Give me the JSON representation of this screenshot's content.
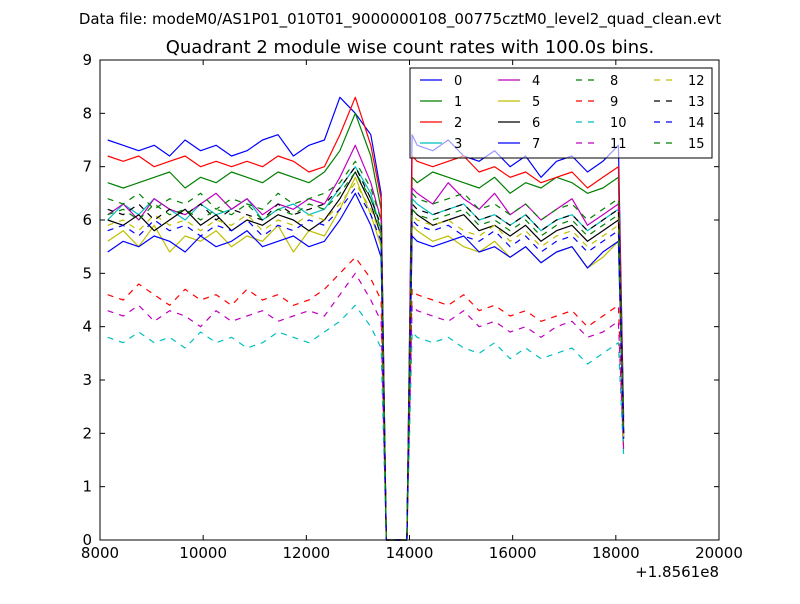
{
  "figure": {
    "suptitle": "Data file: modeM0/AS1P01_010T01_9000000108_00775cztM0_level2_quad_clean.evt",
    "title": "Quadrant 2 module wise count rates with 100.0s bins.",
    "x_offset_label": "+1.8561e8"
  },
  "chart_data": {
    "type": "line",
    "title": "Quadrant 2 module wise count rates with 100.0s bins.",
    "xlabel": "",
    "ylabel": "",
    "xlim": [
      8000,
      20000
    ],
    "ylim": [
      0,
      9
    ],
    "x_offset": 185610000,
    "x_ticks": [
      8000,
      10000,
      12000,
      14000,
      16000,
      18000,
      20000
    ],
    "y_ticks": [
      0,
      1,
      2,
      3,
      4,
      5,
      6,
      7,
      8,
      9
    ],
    "grid": false,
    "legend_position": "top-right",
    "legend_columns": 4,
    "x": [
      8150,
      8450,
      8750,
      9050,
      9350,
      9650,
      9950,
      10250,
      10550,
      10850,
      11150,
      11450,
      11750,
      12050,
      12350,
      12650,
      12950,
      13250,
      13450,
      13550,
      13650,
      13950,
      14050,
      14150,
      14450,
      14750,
      15050,
      15350,
      15650,
      15950,
      16250,
      16550,
      16850,
      17150,
      17450,
      17750,
      18050,
      18150
    ],
    "series": [
      {
        "name": "0",
        "color": "#0000ff",
        "dash": "solid",
        "values": [
          7.5,
          7.4,
          7.3,
          7.4,
          7.2,
          7.5,
          7.3,
          7.4,
          7.2,
          7.3,
          7.5,
          7.6,
          7.2,
          7.4,
          7.5,
          8.3,
          8.0,
          7.6,
          6.5,
          0.0,
          0.0,
          0.0,
          7.6,
          7.4,
          7.3,
          7.5,
          7.2,
          7.1,
          7.3,
          7.0,
          7.2,
          6.8,
          7.1,
          7.2,
          6.9,
          7.1,
          7.4,
          2.3
        ]
      },
      {
        "name": "1",
        "color": "#008000",
        "dash": "solid",
        "values": [
          6.7,
          6.6,
          6.7,
          6.8,
          6.9,
          6.6,
          6.8,
          6.7,
          6.9,
          6.8,
          6.7,
          6.9,
          6.8,
          6.7,
          6.9,
          7.3,
          8.0,
          7.2,
          6.2,
          0.0,
          0.0,
          0.0,
          6.8,
          6.7,
          6.9,
          6.8,
          6.7,
          6.6,
          6.8,
          6.5,
          6.7,
          6.6,
          6.8,
          6.7,
          6.5,
          6.6,
          6.8,
          2.1
        ]
      },
      {
        "name": "2",
        "color": "#ff0000",
        "dash": "solid",
        "values": [
          7.2,
          7.1,
          7.2,
          7.0,
          7.1,
          7.2,
          7.0,
          7.1,
          7.0,
          7.1,
          7.0,
          7.2,
          7.1,
          6.9,
          7.0,
          7.6,
          8.3,
          7.4,
          6.4,
          0.0,
          0.0,
          0.0,
          7.2,
          7.1,
          7.0,
          7.1,
          7.2,
          6.9,
          7.0,
          6.8,
          6.9,
          6.7,
          6.8,
          6.9,
          6.6,
          6.8,
          7.0,
          2.2
        ]
      },
      {
        "name": "3",
        "color": "#00bfbf",
        "dash": "solid",
        "values": [
          6.0,
          6.3,
          6.1,
          6.4,
          6.2,
          6.0,
          6.3,
          6.1,
          6.2,
          6.4,
          6.0,
          6.2,
          6.3,
          6.1,
          6.2,
          6.6,
          7.0,
          6.5,
          5.8,
          0.0,
          0.0,
          0.0,
          6.4,
          6.3,
          6.1,
          6.2,
          6.3,
          6.0,
          6.1,
          5.9,
          6.1,
          5.8,
          6.0,
          6.1,
          5.8,
          6.0,
          6.2,
          2.0
        ]
      },
      {
        "name": "4",
        "color": "#bf00bf",
        "dash": "solid",
        "values": [
          6.1,
          6.3,
          6.0,
          6.4,
          6.2,
          6.1,
          6.3,
          6.5,
          6.2,
          6.4,
          6.1,
          6.3,
          6.2,
          6.4,
          6.3,
          6.8,
          7.4,
          6.7,
          6.0,
          0.0,
          0.0,
          0.0,
          6.6,
          6.5,
          6.3,
          6.7,
          6.4,
          6.2,
          6.5,
          6.1,
          6.3,
          6.0,
          6.2,
          6.4,
          5.9,
          6.1,
          6.3,
          2.0
        ]
      },
      {
        "name": "5",
        "color": "#bfbf00",
        "dash": "solid",
        "values": [
          5.6,
          5.8,
          5.5,
          5.9,
          5.4,
          5.7,
          5.6,
          5.8,
          5.5,
          5.7,
          5.6,
          5.9,
          5.4,
          5.8,
          5.7,
          6.2,
          6.8,
          6.1,
          5.5,
          0.0,
          0.0,
          0.0,
          5.9,
          5.8,
          5.6,
          5.7,
          5.5,
          5.4,
          5.6,
          5.3,
          5.5,
          5.2,
          5.4,
          5.5,
          5.1,
          5.3,
          5.6,
          1.9
        ]
      },
      {
        "name": "6",
        "color": "#000000",
        "dash": "solid",
        "values": [
          6.0,
          5.9,
          6.1,
          5.8,
          6.0,
          6.2,
          5.9,
          6.1,
          5.8,
          6.0,
          5.9,
          6.1,
          6.0,
          5.8,
          6.0,
          6.4,
          6.9,
          6.3,
          5.7,
          0.0,
          0.0,
          0.0,
          6.2,
          6.1,
          5.9,
          6.0,
          6.1,
          5.8,
          5.9,
          5.7,
          5.9,
          5.6,
          5.8,
          5.9,
          5.6,
          5.8,
          6.0,
          2.0
        ]
      },
      {
        "name": "7",
        "color": "#0000ff",
        "dash": "solid",
        "values": [
          5.4,
          5.6,
          5.5,
          5.7,
          5.6,
          5.4,
          5.7,
          5.5,
          5.6,
          5.8,
          5.5,
          5.6,
          5.7,
          5.5,
          5.6,
          6.0,
          6.5,
          5.9,
          5.3,
          0.0,
          0.0,
          0.0,
          5.7,
          5.6,
          5.5,
          5.6,
          5.7,
          5.4,
          5.5,
          5.3,
          5.5,
          5.2,
          5.4,
          5.5,
          5.1,
          5.4,
          5.6,
          1.9
        ]
      },
      {
        "name": "8",
        "color": "#008000",
        "dash": "dashed",
        "values": [
          6.4,
          6.3,
          6.5,
          6.2,
          6.4,
          6.3,
          6.5,
          6.2,
          6.4,
          6.3,
          6.2,
          6.5,
          6.3,
          6.4,
          6.5,
          6.7,
          7.1,
          6.6,
          6.0,
          0.0,
          0.0,
          0.0,
          6.5,
          6.4,
          6.3,
          6.4,
          6.5,
          6.2,
          6.3,
          6.1,
          6.3,
          6.0,
          6.2,
          6.3,
          6.0,
          6.2,
          6.4,
          2.0
        ]
      },
      {
        "name": "9",
        "color": "#ff0000",
        "dash": "dashed",
        "values": [
          4.6,
          4.5,
          4.8,
          4.6,
          4.4,
          4.7,
          4.5,
          4.6,
          4.4,
          4.7,
          4.5,
          4.6,
          4.4,
          4.5,
          4.7,
          5.0,
          5.3,
          4.9,
          4.5,
          0.0,
          0.0,
          0.0,
          4.7,
          4.6,
          4.5,
          4.4,
          4.6,
          4.3,
          4.4,
          4.2,
          4.3,
          4.1,
          4.2,
          4.3,
          4.0,
          4.2,
          4.4,
          1.7
        ]
      },
      {
        "name": "10",
        "color": "#00bfbf",
        "dash": "dashed",
        "values": [
          3.8,
          3.7,
          3.9,
          3.7,
          3.8,
          3.6,
          3.9,
          3.7,
          3.8,
          3.6,
          3.7,
          3.9,
          3.8,
          3.7,
          3.9,
          4.1,
          4.4,
          4.0,
          3.6,
          0.0,
          0.0,
          0.0,
          3.9,
          3.8,
          3.7,
          3.8,
          3.6,
          3.5,
          3.7,
          3.4,
          3.6,
          3.4,
          3.5,
          3.6,
          3.3,
          3.5,
          3.7,
          1.6
        ]
      },
      {
        "name": "11",
        "color": "#bf00bf",
        "dash": "dashed",
        "values": [
          4.3,
          4.2,
          4.4,
          4.1,
          4.3,
          4.2,
          4.0,
          4.3,
          4.1,
          4.2,
          4.3,
          4.1,
          4.2,
          4.3,
          4.2,
          4.6,
          5.0,
          4.5,
          4.1,
          0.0,
          0.0,
          0.0,
          4.4,
          4.3,
          4.2,
          4.1,
          4.3,
          4.0,
          4.1,
          3.9,
          4.0,
          3.8,
          4.0,
          4.1,
          3.8,
          3.9,
          4.1,
          1.7
        ]
      },
      {
        "name": "12",
        "color": "#bfbf00",
        "dash": "dashed",
        "values": [
          5.9,
          6.0,
          5.8,
          6.1,
          5.9,
          6.0,
          5.8,
          6.0,
          5.9,
          6.1,
          5.8,
          6.0,
          5.9,
          6.1,
          6.0,
          6.3,
          6.7,
          6.2,
          5.7,
          0.0,
          0.0,
          0.0,
          6.1,
          6.0,
          5.9,
          6.0,
          5.8,
          5.7,
          5.9,
          5.6,
          5.8,
          5.5,
          5.7,
          5.8,
          5.5,
          5.7,
          5.9,
          1.9
        ]
      },
      {
        "name": "13",
        "color": "#000000",
        "dash": "dashed",
        "values": [
          6.2,
          6.1,
          6.3,
          6.0,
          6.2,
          6.1,
          6.3,
          6.0,
          6.2,
          6.1,
          6.0,
          6.3,
          6.1,
          6.2,
          6.3,
          6.6,
          7.0,
          6.4,
          5.9,
          0.0,
          0.0,
          0.0,
          6.3,
          6.2,
          6.1,
          6.2,
          6.3,
          6.0,
          6.1,
          5.9,
          6.1,
          5.8,
          6.0,
          6.1,
          5.8,
          6.0,
          6.2,
          2.0
        ]
      },
      {
        "name": "14",
        "color": "#0000ff",
        "dash": "dashed",
        "values": [
          5.8,
          5.9,
          5.7,
          6.0,
          5.8,
          5.9,
          5.7,
          5.9,
          5.8,
          6.0,
          5.7,
          5.9,
          5.8,
          6.0,
          5.9,
          6.2,
          6.6,
          6.1,
          5.6,
          0.0,
          0.0,
          0.0,
          6.0,
          5.9,
          5.8,
          5.9,
          5.7,
          5.6,
          5.8,
          5.5,
          5.7,
          5.4,
          5.6,
          5.7,
          5.4,
          5.6,
          5.8,
          1.9
        ]
      },
      {
        "name": "15",
        "color": "#008000",
        "dash": "dashed",
        "values": [
          6.1,
          6.2,
          6.0,
          6.3,
          6.1,
          6.2,
          6.0,
          6.2,
          6.1,
          6.3,
          6.0,
          6.2,
          6.1,
          6.3,
          6.2,
          6.5,
          6.9,
          6.4,
          5.8,
          0.0,
          0.0,
          0.0,
          6.2,
          6.1,
          6.0,
          6.1,
          6.2,
          5.9,
          6.0,
          5.8,
          6.0,
          5.7,
          5.9,
          6.0,
          5.7,
          5.9,
          6.1,
          2.0
        ]
      }
    ]
  }
}
